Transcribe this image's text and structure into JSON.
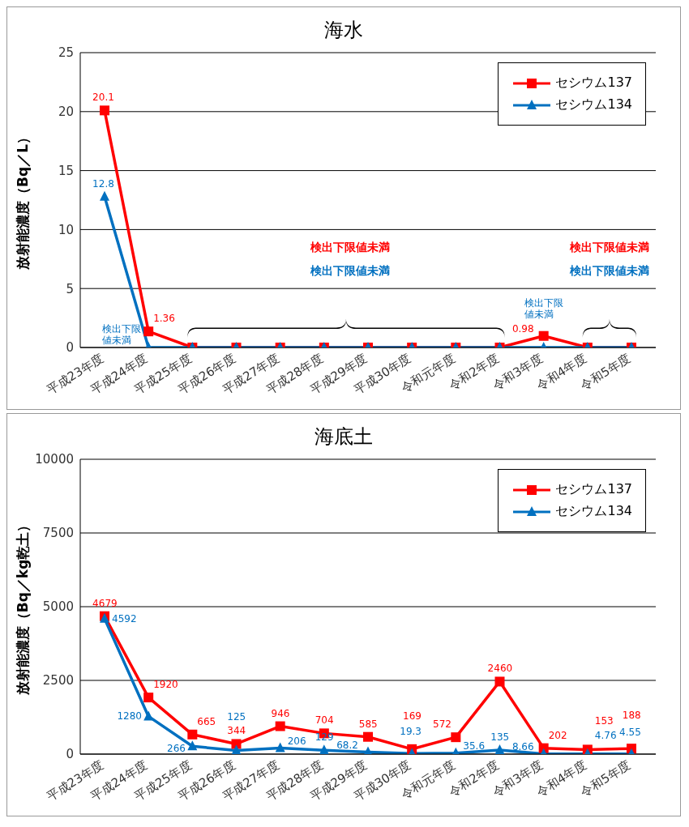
{
  "chart_data": [
    {
      "type": "line",
      "title": "海水",
      "ylabel": "放射能濃度（Bq／L）",
      "categories": [
        "平成23年度",
        "平成24年度",
        "平成25年度",
        "平成26年度",
        "平成27年度",
        "平成28年度",
        "平成29年度",
        "平成30年度",
        "令和元年度",
        "令和2年度",
        "令和3年度",
        "令和4年度",
        "令和5年度"
      ],
      "series": [
        {
          "name": "セシウム137",
          "color": "#ff0000",
          "marker": "square",
          "values": [
            20.1,
            1.36,
            0,
            0,
            0,
            0,
            0,
            0,
            0,
            0,
            0.98,
            0,
            0
          ],
          "value_labels": [
            "20.1",
            "1.36",
            null,
            null,
            null,
            null,
            null,
            null,
            null,
            null,
            "0.98",
            null,
            null
          ]
        },
        {
          "name": "セシウム134",
          "color": "#0070c0",
          "marker": "triangle",
          "values": [
            12.8,
            0,
            0,
            0,
            0,
            0,
            0,
            0,
            0,
            0,
            0,
            0,
            0
          ],
          "value_labels": [
            "12.8",
            "検出下限値未満",
            null,
            null,
            null,
            null,
            null,
            null,
            null,
            null,
            "検出下限値未満",
            null,
            null
          ]
        }
      ],
      "ylim": [
        0,
        25
      ],
      "yticks": [
        0,
        5,
        10,
        15,
        20,
        25
      ],
      "grid": "y",
      "legend": "top right",
      "annotations": [
        "検出下限値未満",
        "検出下限値未満",
        "検出下限値未満",
        "検出下限値未満"
      ]
    },
    {
      "type": "line",
      "title": "海底土",
      "ylabel": "放射能濃度（Bq／kg乾土）",
      "categories": [
        "平成23年度",
        "平成24年度",
        "平成25年度",
        "平成26年度",
        "平成27年度",
        "平成28年度",
        "平成29年度",
        "平成30年度",
        "令和元年度",
        "令和2年度",
        "令和3年度",
        "令和4年度",
        "令和5年度"
      ],
      "series": [
        {
          "name": "セシウム137",
          "color": "#ff0000",
          "marker": "square",
          "values": [
            4679,
            1920,
            665,
            344,
            946,
            704,
            585,
            169,
            572,
            2460,
            202,
            153,
            188
          ]
        },
        {
          "name": "セシウム134",
          "color": "#0070c0",
          "marker": "triangle",
          "values": [
            4592,
            1280,
            266,
            125,
            206,
            129,
            68.2,
            19.3,
            35.6,
            135,
            8.66,
            4.76,
            4.55
          ]
        }
      ],
      "ylim": [
        0,
        10000
      ],
      "yticks": [
        0,
        2500,
        5000,
        7500,
        10000
      ],
      "grid": "y",
      "legend": "top right",
      "data_labels": true
    }
  ]
}
